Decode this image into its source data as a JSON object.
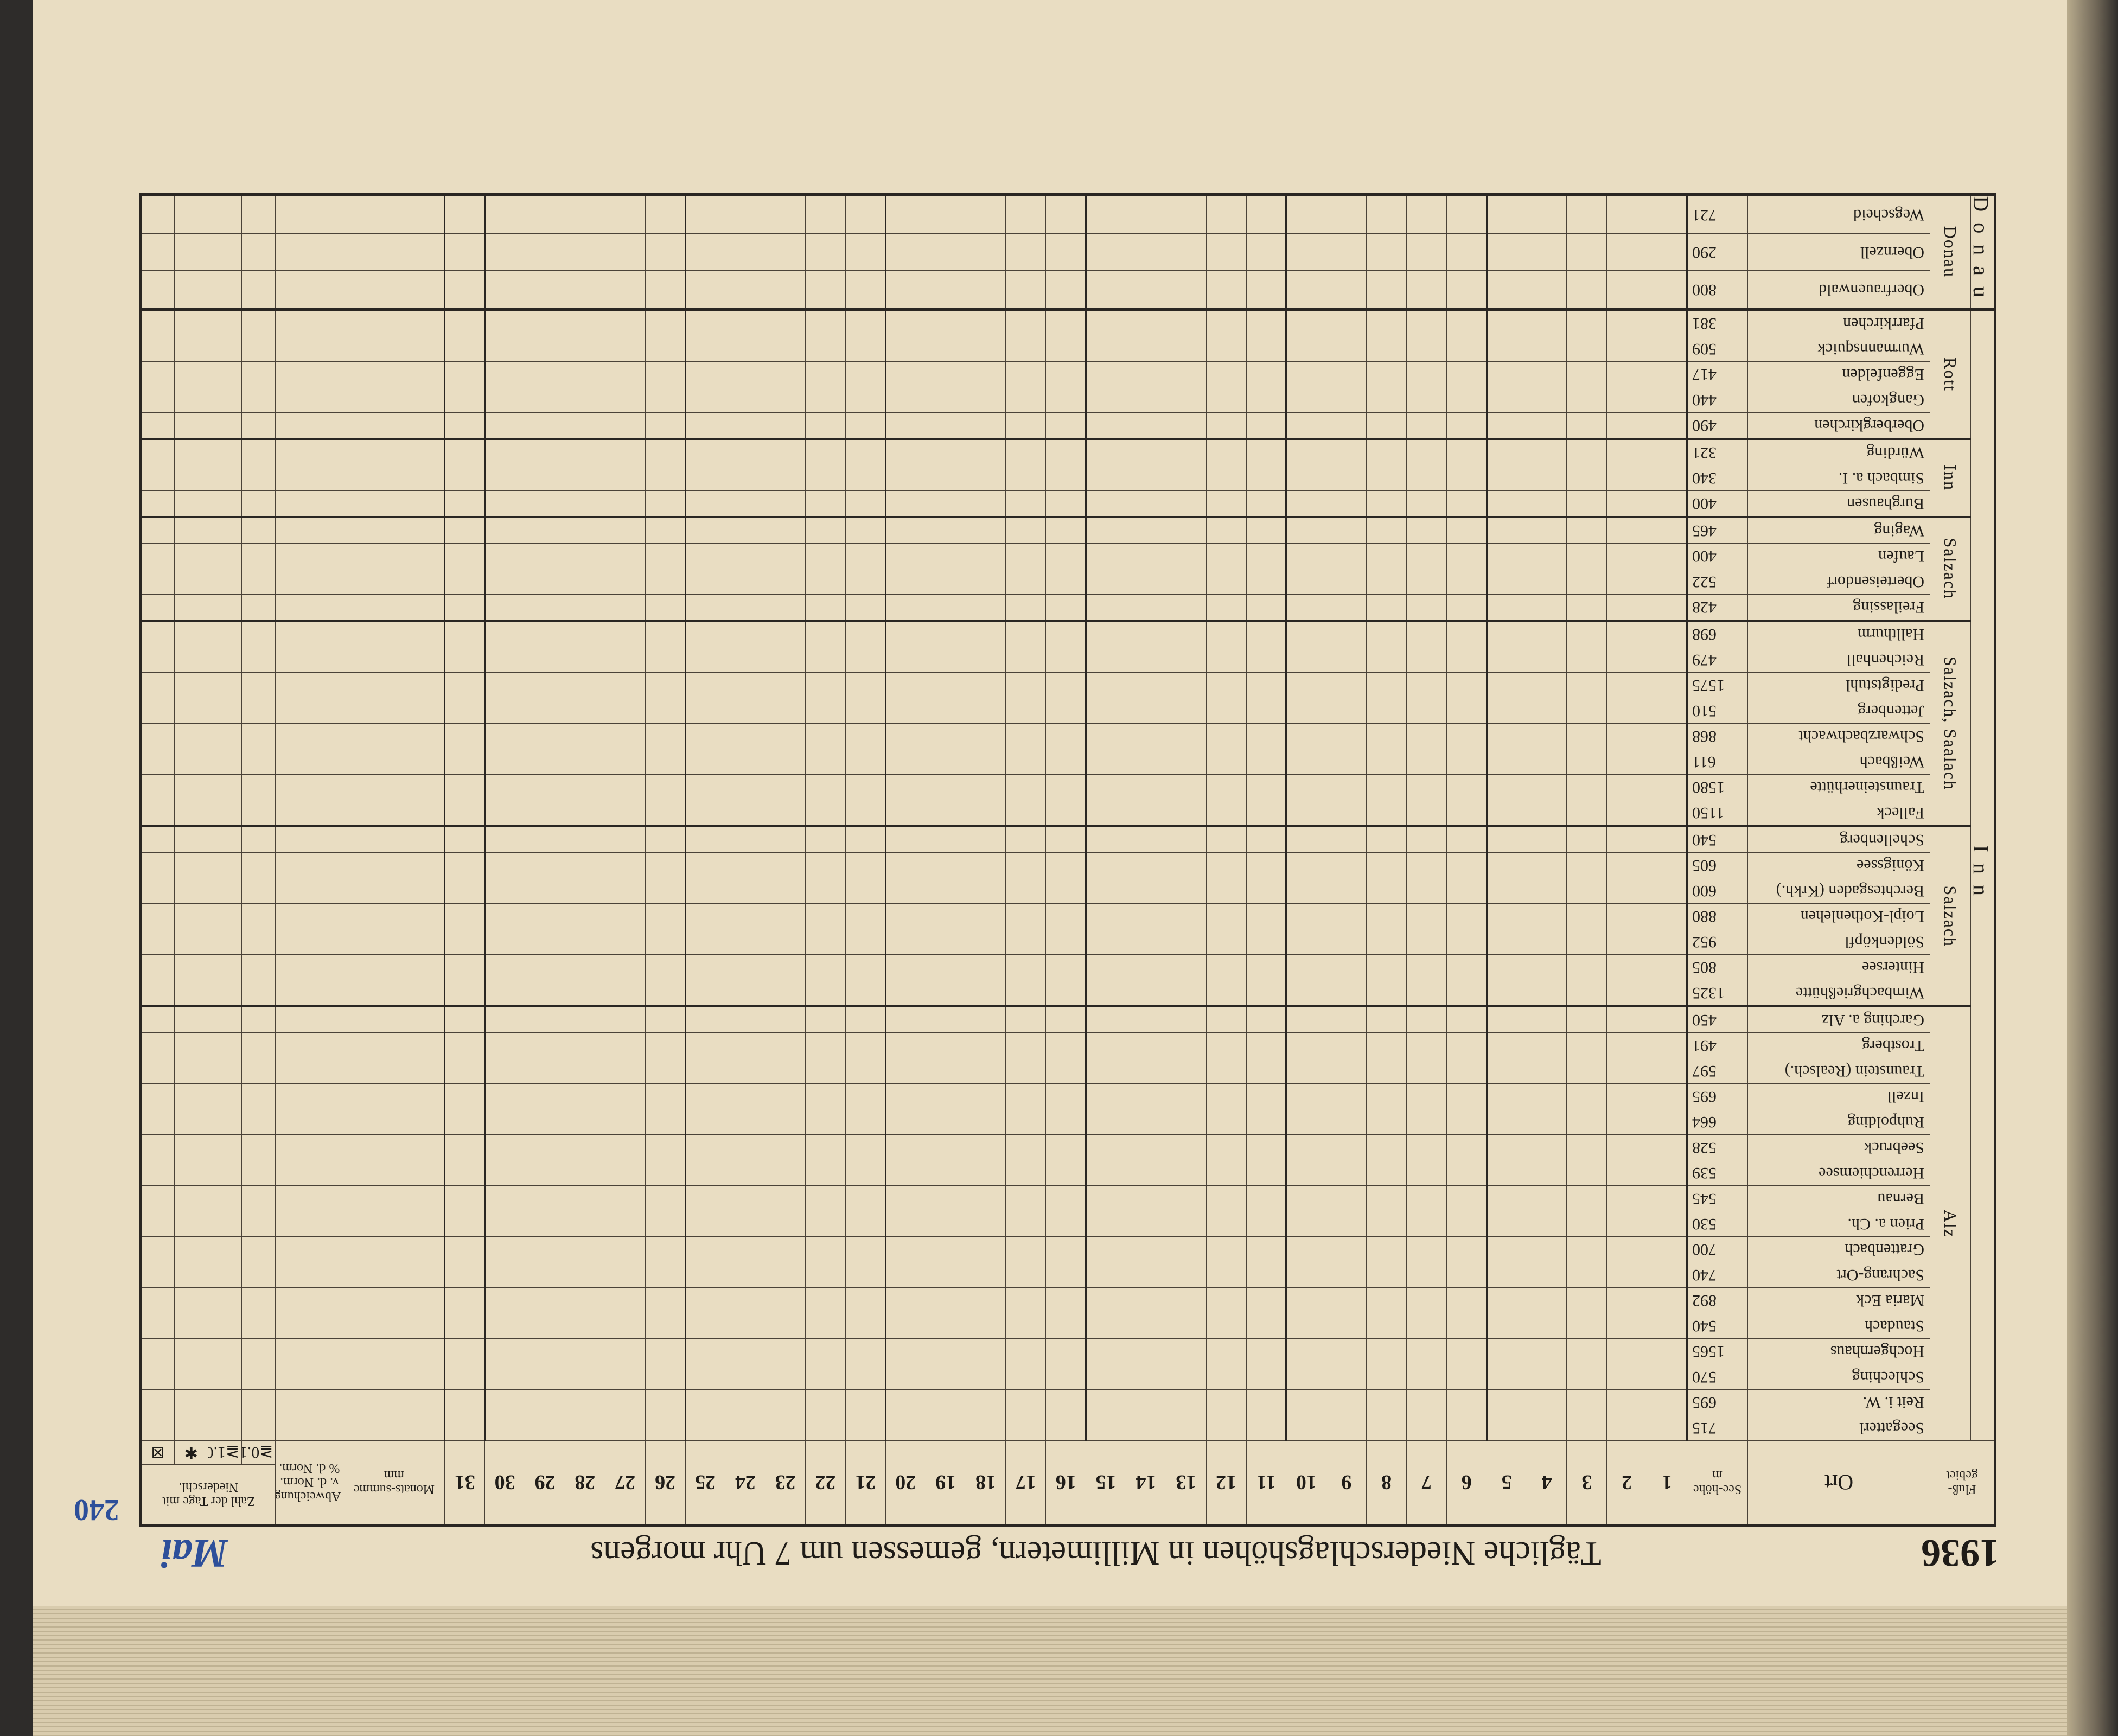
{
  "header": {
    "year": "1936",
    "title": "Tägliche Niederschlagshöhen in Millimetern, gemessen um 7 Uhr morgens",
    "month": "Mai",
    "page": "240"
  },
  "columns": {
    "basin": "Fluß-gebiet",
    "place": "Ort",
    "elevation": "See-höhe",
    "elevation_unit": "m",
    "days": [
      1,
      2,
      3,
      4,
      5,
      6,
      7,
      8,
      9,
      10,
      11,
      12,
      13,
      14,
      15,
      16,
      17,
      18,
      19,
      20,
      21,
      22,
      23,
      24,
      25,
      26,
      27,
      28,
      29,
      30,
      31
    ],
    "sum": "Monats-summe",
    "sum_unit": "mm",
    "deviation": "Abweichung v. d. Norm.",
    "deviation_unit": "% d. Norm.",
    "count": "Zahl der Tage mit Niederschl.",
    "count_cols": [
      "≧0.1",
      "≧1.0",
      "✱",
      "⊠"
    ]
  },
  "basins": [
    {
      "name": "Inn",
      "rivers": [
        {
          "name": "Alz",
          "stations": [
            {
              "name": "Seegatterl",
              "elevation": 715
            },
            {
              "name": "Reit i. W.",
              "elevation": 695
            },
            {
              "name": "Schleching",
              "elevation": 570
            },
            {
              "name": "Hochgernhaus",
              "elevation": 1565
            },
            {
              "name": "Staudach",
              "elevation": 540
            },
            {
              "name": "Maria Eck",
              "elevation": 892
            },
            {
              "name": "Sachrang-Ort",
              "elevation": 740
            },
            {
              "name": "Grattenbach",
              "elevation": 700
            },
            {
              "name": "Prien a. Ch.",
              "elevation": 530
            },
            {
              "name": "Bernau",
              "elevation": 545
            },
            {
              "name": "Herrenchiemsee",
              "elevation": 539
            },
            {
              "name": "Seebruck",
              "elevation": 528
            },
            {
              "name": "Ruhpolding",
              "elevation": 664
            },
            {
              "name": "Inzell",
              "elevation": 695
            },
            {
              "name": "Traunstein (Realsch.)",
              "elevation": 597
            },
            {
              "name": "Trostberg",
              "elevation": 491
            },
            {
              "name": "Garching a. Alz",
              "elevation": 450
            }
          ]
        },
        {
          "name": "Salzach",
          "stations": [
            {
              "name": "Wimbachgrießhütte",
              "elevation": 1325
            },
            {
              "name": "Hintersee",
              "elevation": 805
            },
            {
              "name": "Söldenköpfl",
              "elevation": 952
            },
            {
              "name": "Loipl-Kothenlehen",
              "elevation": 880
            },
            {
              "name": "Berchtesgaden (Krkh.)",
              "elevation": 600
            },
            {
              "name": "Königssee",
              "elevation": 605
            },
            {
              "name": "Schellenberg",
              "elevation": 540
            }
          ]
        },
        {
          "name": "Salzach, Saalach",
          "stations": [
            {
              "name": "Falleck",
              "elevation": 1150
            },
            {
              "name": "Traunsteinerhütte",
              "elevation": 1580
            },
            {
              "name": "Weißbach",
              "elevation": 611
            },
            {
              "name": "Schwarzbachwacht",
              "elevation": 868
            },
            {
              "name": "Jettenberg",
              "elevation": 510
            },
            {
              "name": "Predigtstuhl",
              "elevation": 1575
            },
            {
              "name": "Reichenhall",
              "elevation": 479
            },
            {
              "name": "Hallthurm",
              "elevation": 698
            }
          ]
        },
        {
          "name": "Salzach",
          "stations": [
            {
              "name": "Freilassing",
              "elevation": 428
            },
            {
              "name": "Oberteisendorf",
              "elevation": 522
            },
            {
              "name": "Laufen",
              "elevation": 400
            },
            {
              "name": "Waging",
              "elevation": 465
            }
          ]
        },
        {
          "name": "Inn",
          "stations": [
            {
              "name": "Burghausen",
              "elevation": 400
            },
            {
              "name": "Simbach a. I.",
              "elevation": 340
            },
            {
              "name": "Würding",
              "elevation": 321
            }
          ]
        },
        {
          "name": "Rott",
          "stations": [
            {
              "name": "Oberbergkirchen",
              "elevation": 490
            },
            {
              "name": "Gangkofen",
              "elevation": 440
            },
            {
              "name": "Eggenfelden",
              "elevation": 417
            },
            {
              "name": "Wurmannsquick",
              "elevation": 509
            },
            {
              "name": "Pfarrkirchen",
              "elevation": 381
            }
          ]
        }
      ]
    },
    {
      "name": "Donau",
      "rivers": [
        {
          "name": "Donau",
          "stations": [
            {
              "name": "Oberfrauenwald",
              "elevation": 800
            },
            {
              "name": "Obernzell",
              "elevation": 290
            },
            {
              "name": "Wegscheid",
              "elevation": 721
            }
          ]
        }
      ]
    }
  ]
}
